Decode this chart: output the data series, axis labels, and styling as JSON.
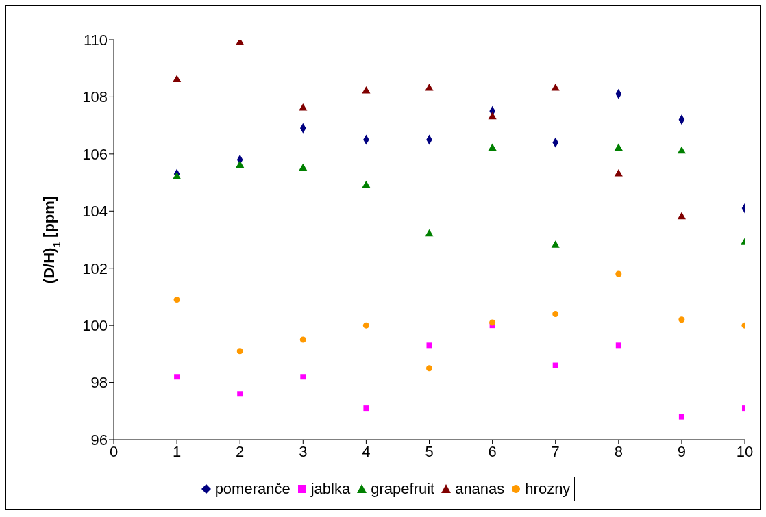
{
  "chart_data": {
    "type": "scatter",
    "ylabel": "(D/H)$_{1}$ [ppm]",
    "x": [
      1,
      2,
      3,
      4,
      5,
      6,
      7,
      8,
      9,
      10
    ],
    "xlim": [
      0,
      10
    ],
    "xticks": [
      0,
      1,
      2,
      3,
      4,
      5,
      6,
      7,
      8,
      9,
      10
    ],
    "ylim": [
      96,
      110
    ],
    "yticks": [
      96,
      98,
      100,
      102,
      104,
      106,
      108,
      110
    ],
    "grid": false,
    "legend": "bottom",
    "series": [
      {
        "name": "pomeranče",
        "color": "#000080",
        "marker": "diamond",
        "values": [
          105.3,
          105.8,
          106.9,
          106.5,
          106.5,
          107.5,
          106.4,
          108.1,
          107.2,
          104.1
        ]
      },
      {
        "name": "jablka",
        "color": "#ff00ff",
        "marker": "square",
        "values": [
          98.2,
          97.6,
          98.2,
          97.1,
          99.3,
          100.0,
          98.6,
          99.3,
          96.8,
          97.1
        ]
      },
      {
        "name": "grapefruit",
        "color": "#008000",
        "marker": "triangle",
        "values": [
          105.2,
          105.6,
          105.5,
          104.9,
          103.2,
          106.2,
          102.8,
          106.2,
          106.1,
          102.9
        ]
      },
      {
        "name": "ananas",
        "color": "#800000",
        "marker": "triangle",
        "values": [
          108.6,
          109.9,
          107.6,
          108.2,
          108.3,
          107.3,
          108.3,
          105.3,
          103.8,
          null
        ]
      },
      {
        "name": "hrozny",
        "color": "#ff9900",
        "marker": "circle",
        "values": [
          100.9,
          99.1,
          99.5,
          100.0,
          98.5,
          100.1,
          100.4,
          101.8,
          100.2,
          100.0
        ]
      }
    ]
  }
}
